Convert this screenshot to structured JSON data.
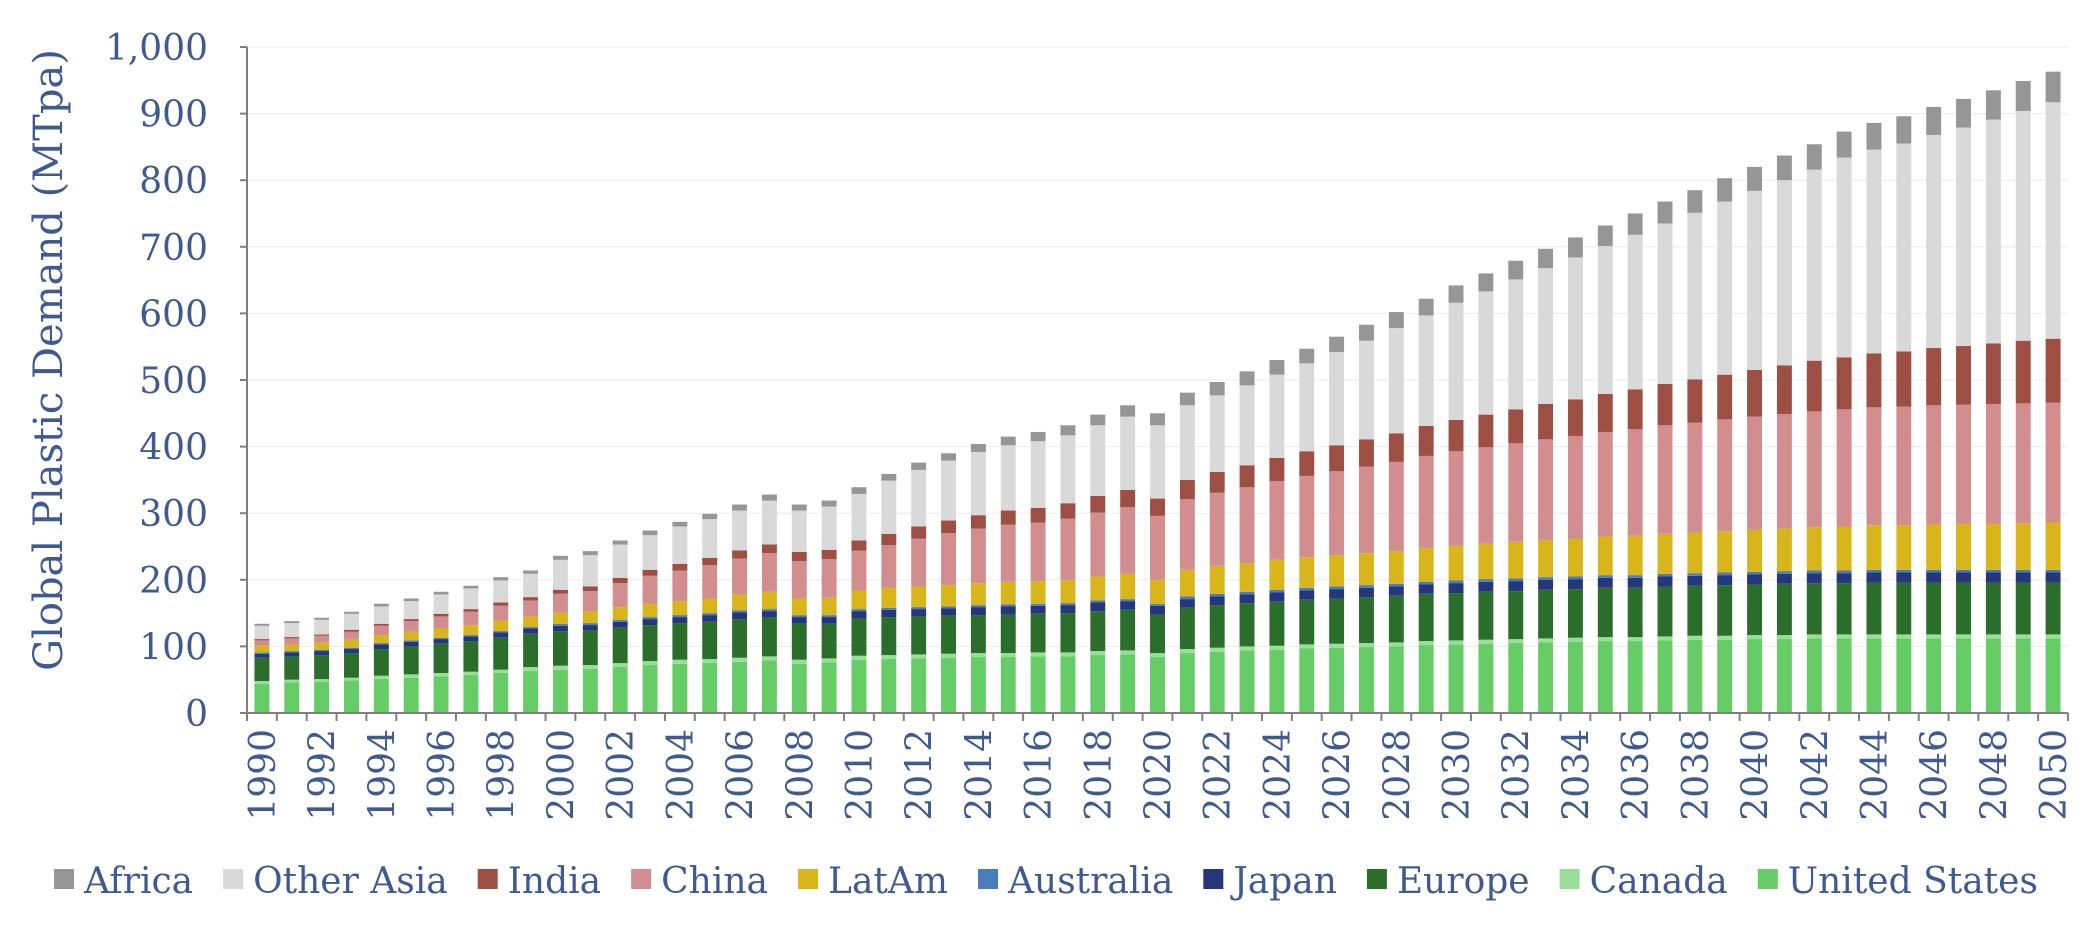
{
  "chart_data": {
    "type": "bar",
    "stacked": true,
    "title": "",
    "xlabel": "",
    "ylabel": "Global Plastic Demand (MTpa)",
    "ylim": [
      0,
      1000
    ],
    "y_ticks": [
      "0",
      "100",
      "200",
      "300",
      "400",
      "500",
      "600",
      "700",
      "800",
      "900",
      "1,000"
    ],
    "grid": true,
    "legend_position": "bottom",
    "categories": [
      "1990",
      "1991",
      "1992",
      "1993",
      "1994",
      "1995",
      "1996",
      "1997",
      "1998",
      "1999",
      "2000",
      "2001",
      "2002",
      "2003",
      "2004",
      "2005",
      "2006",
      "2007",
      "2008",
      "2009",
      "2010",
      "2011",
      "2012",
      "2013",
      "2014",
      "2015",
      "2016",
      "2017",
      "2018",
      "2019",
      "2020",
      "2021",
      "2022",
      "2023",
      "2024",
      "2025",
      "2026",
      "2027",
      "2028",
      "2029",
      "2030",
      "2031",
      "2032",
      "2033",
      "2034",
      "2035",
      "2036",
      "2037",
      "2038",
      "2039",
      "2040",
      "2041",
      "2042",
      "2043",
      "2044",
      "2045",
      "2046",
      "2047",
      "2048",
      "2049",
      "2050"
    ],
    "x_tick_labels": [
      "1990",
      "1992",
      "1994",
      "1996",
      "1998",
      "2000",
      "2002",
      "2004",
      "2006",
      "2008",
      "2010",
      "2012",
      "2014",
      "2016",
      "2018",
      "2020",
      "2022",
      "2024",
      "2026",
      "2028",
      "2030",
      "2032",
      "2034",
      "2036",
      "2038",
      "2040",
      "2042",
      "2044",
      "2046",
      "2048",
      "2050"
    ],
    "series": [
      {
        "name": "United States",
        "color": "#66cc66",
        "values": [
          44,
          46,
          47,
          49,
          51,
          53,
          55,
          57,
          60,
          63,
          65,
          66,
          69,
          72,
          74,
          75,
          77,
          79,
          74,
          76,
          80,
          81,
          82,
          83,
          84,
          84,
          85,
          85,
          87,
          88,
          84,
          90,
          92,
          94,
          95,
          97,
          98,
          99,
          100,
          102,
          103,
          104,
          105,
          106,
          107,
          108,
          108,
          109,
          110,
          110,
          111,
          111,
          112,
          112,
          112,
          112,
          112,
          112,
          112,
          112,
          112
        ]
      },
      {
        "name": "Canada",
        "color": "#99dd99",
        "values": [
          4,
          4,
          4,
          4,
          5,
          5,
          5,
          5,
          5,
          6,
          6,
          6,
          6,
          6,
          6,
          6,
          6,
          6,
          6,
          6,
          6,
          6,
          6,
          6,
          6,
          6,
          6,
          6,
          6,
          6,
          6,
          6,
          6,
          6,
          6,
          6,
          6,
          6,
          6,
          6,
          6,
          6,
          6,
          6,
          6,
          6,
          6,
          6,
          6,
          6,
          6,
          6,
          6,
          6,
          6,
          6,
          6,
          6,
          6,
          6,
          6
        ]
      },
      {
        "name": "Europe",
        "color": "#2b6e2b",
        "values": [
          35,
          35,
          36,
          37,
          40,
          42,
          44,
          46,
          48,
          50,
          52,
          52,
          53,
          54,
          55,
          56,
          58,
          58,
          54,
          52,
          56,
          57,
          57,
          57,
          57,
          58,
          58,
          59,
          60,
          61,
          58,
          62,
          64,
          65,
          66,
          67,
          68,
          69,
          70,
          71,
          71,
          72,
          72,
          73,
          73,
          74,
          74,
          75,
          75,
          76,
          76,
          77,
          77,
          77,
          78,
          78,
          78,
          78,
          78,
          78,
          78
        ]
      },
      {
        "name": "Japan",
        "color": "#26367a",
        "values": [
          6,
          6,
          6,
          6,
          7,
          7,
          7,
          7,
          8,
          8,
          8,
          8,
          9,
          9,
          9,
          10,
          10,
          10,
          10,
          10,
          11,
          11,
          11,
          11,
          12,
          12,
          12,
          12,
          13,
          13,
          13,
          13,
          13,
          13,
          14,
          14,
          14,
          14,
          14,
          14,
          15,
          15,
          15,
          15,
          15,
          15,
          15,
          15,
          15,
          15,
          15,
          15,
          15,
          15,
          15,
          15,
          15,
          15,
          15,
          15,
          15
        ]
      },
      {
        "name": "Australia",
        "color": "#4a7ebb",
        "values": [
          2,
          2,
          2,
          2,
          2,
          2,
          2,
          2,
          2,
          2,
          3,
          3,
          3,
          3,
          3,
          3,
          3,
          3,
          3,
          3,
          3,
          3,
          3,
          3,
          3,
          3,
          3,
          3,
          3,
          3,
          3,
          4,
          4,
          4,
          4,
          4,
          4,
          4,
          4,
          4,
          4,
          4,
          4,
          4,
          4,
          4,
          4,
          4,
          4,
          4,
          4,
          4,
          4,
          4,
          4,
          4,
          4,
          4,
          4,
          4,
          4
        ]
      },
      {
        "name": "LatAm",
        "color": "#d9b51c",
        "values": [
          10,
          10,
          11,
          12,
          12,
          13,
          14,
          15,
          16,
          16,
          17,
          18,
          19,
          20,
          21,
          22,
          24,
          26,
          25,
          26,
          28,
          30,
          31,
          32,
          33,
          34,
          34,
          35,
          36,
          38,
          36,
          40,
          42,
          43,
          45,
          46,
          47,
          48,
          49,
          51,
          52,
          53,
          55,
          56,
          57,
          58,
          59,
          60,
          61,
          62,
          63,
          64,
          65,
          66,
          67,
          67,
          68,
          69,
          69,
          70,
          71
        ]
      },
      {
        "name": "China",
        "color": "#d28e8e",
        "values": [
          8,
          9,
          10,
          12,
          14,
          16,
          18,
          20,
          22,
          24,
          28,
          30,
          36,
          42,
          46,
          50,
          54,
          58,
          56,
          58,
          60,
          64,
          72,
          78,
          82,
          86,
          88,
          92,
          96,
          100,
          96,
          106,
          110,
          114,
          118,
          122,
          126,
          130,
          134,
          138,
          142,
          145,
          148,
          151,
          154,
          157,
          160,
          163,
          165,
          168,
          170,
          172,
          174,
          176,
          177,
          178,
          179,
          179,
          180,
          180,
          180
        ]
      },
      {
        "name": "India",
        "color": "#9e4f43",
        "values": [
          2,
          2,
          2,
          3,
          3,
          3,
          4,
          4,
          5,
          5,
          6,
          7,
          8,
          9,
          10,
          11,
          12,
          13,
          14,
          14,
          15,
          17,
          18,
          19,
          20,
          21,
          22,
          23,
          25,
          26,
          26,
          29,
          31,
          33,
          35,
          37,
          39,
          41,
          43,
          45,
          47,
          49,
          51,
          53,
          55,
          57,
          60,
          62,
          65,
          67,
          70,
          73,
          76,
          78,
          81,
          83,
          86,
          88,
          91,
          94,
          96
        ]
      },
      {
        "name": "Other Asia",
        "color": "#d9d9d9",
        "values": [
          20,
          21,
          22,
          24,
          26,
          27,
          29,
          31,
          33,
          35,
          45,
          47,
          50,
          52,
          56,
          58,
          60,
          66,
          62,
          65,
          70,
          80,
          85,
          90,
          95,
          98,
          100,
          102,
          106,
          110,
          110,
          112,
          115,
          120,
          125,
          132,
          140,
          148,
          158,
          166,
          176,
          185,
          195,
          204,
          213,
          222,
          232,
          241,
          250,
          260,
          269,
          278,
          287,
          300,
          306,
          312,
          320,
          328,
          336,
          345,
          355
        ]
      },
      {
        "name": "Africa",
        "color": "#969696",
        "values": [
          3,
          3,
          3,
          3,
          4,
          4,
          4,
          4,
          5,
          5,
          6,
          6,
          6,
          7,
          7,
          8,
          9,
          9,
          9,
          9,
          10,
          10,
          11,
          11,
          12,
          13,
          14,
          15,
          16,
          17,
          18,
          19,
          20,
          21,
          22,
          22,
          23,
          24,
          24,
          25,
          26,
          27,
          28,
          29,
          30,
          31,
          32,
          33,
          34,
          35,
          36,
          37,
          38,
          39,
          40,
          41,
          42,
          43,
          44,
          45,
          46
        ]
      }
    ]
  }
}
